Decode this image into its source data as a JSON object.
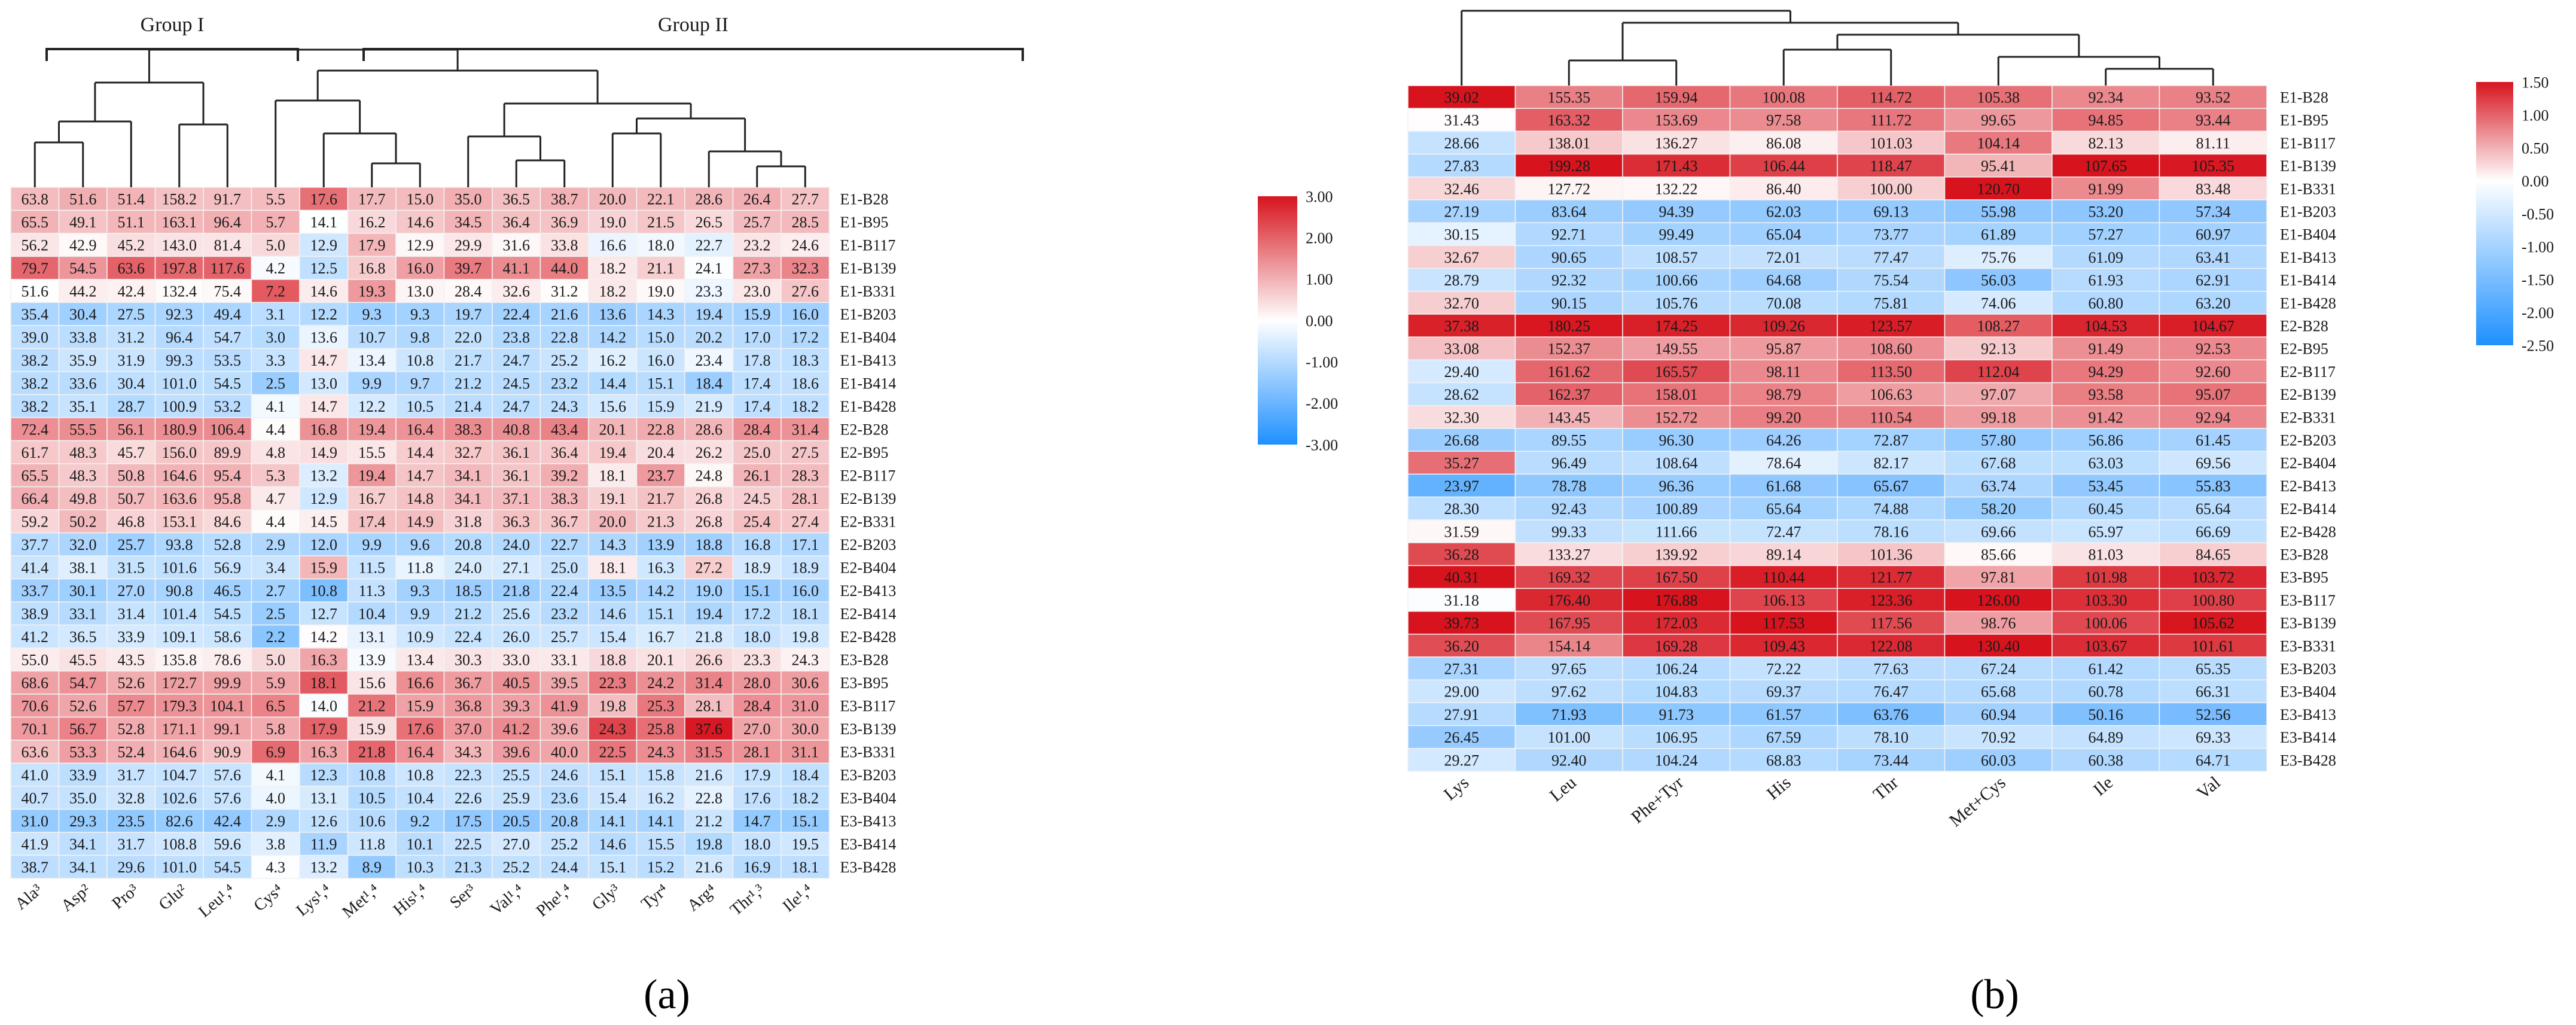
{
  "figure_labels": [
    "(a)",
    "(b)"
  ],
  "chart_data": [
    {
      "type": "heatmap",
      "panel_label": "(a)",
      "group_labels": [
        "Group I",
        "Group II"
      ],
      "columns": [
        "Ala³",
        "Asp²",
        "Pro³",
        "Glu²",
        "Leu¹,⁴",
        "Cys⁴",
        "Lys¹,⁴",
        "Met¹,⁴",
        "His¹,⁴",
        "Ser³",
        "Val¹,⁴",
        "Phe¹,⁴",
        "Gly³",
        "Tyr⁴",
        "Arg⁴",
        "Thr¹,³",
        "Ile¹,⁴"
      ],
      "rows": [
        "E1-B28",
        "E1-B95",
        "E1-B117",
        "E1-B139",
        "E1-B331",
        "E1-B203",
        "E1-B404",
        "E1-B413",
        "E1-B414",
        "E1-B428",
        "E2-B28",
        "E2-B95",
        "E2-B117",
        "E2-B139",
        "E2-B331",
        "E2-B203",
        "E2-B404",
        "E2-B413",
        "E2-B414",
        "E2-B428",
        "E3-B28",
        "E3-B95",
        "E3-B117",
        "E3-B139",
        "E3-B331",
        "E3-B203",
        "E3-B404",
        "E3-B413",
        "E3-B414",
        "E3-B428"
      ],
      "values": [
        [
          "63.8",
          "51.6",
          "51.4",
          "158.2",
          "91.7",
          "5.5",
          "17.6",
          "17.7",
          "15.0",
          "35.0",
          "36.5",
          "38.7",
          "20.0",
          "22.1",
          "28.6",
          "26.4",
          "27.7"
        ],
        [
          "65.5",
          "49.1",
          "51.1",
          "163.1",
          "96.4",
          "5.7",
          "14.1",
          "16.2",
          "14.6",
          "34.5",
          "36.4",
          "36.9",
          "19.0",
          "21.5",
          "26.5",
          "25.7",
          "28.5"
        ],
        [
          "56.2",
          "42.9",
          "45.2",
          "143.0",
          "81.4",
          "5.0",
          "12.9",
          "17.9",
          "12.9",
          "29.9",
          "31.6",
          "33.8",
          "16.6",
          "18.0",
          "22.7",
          "23.2",
          "24.6"
        ],
        [
          "79.7",
          "54.5",
          "63.6",
          "197.8",
          "117.6",
          "4.2",
          "12.5",
          "16.8",
          "16.0",
          "39.7",
          "41.1",
          "44.0",
          "18.2",
          "21.1",
          "24.1",
          "27.3",
          "32.3"
        ],
        [
          "51.6",
          "44.2",
          "42.4",
          "132.4",
          "75.4",
          "7.2",
          "14.6",
          "19.3",
          "13.0",
          "28.4",
          "32.6",
          "31.2",
          "18.2",
          "19.0",
          "23.3",
          "23.0",
          "27.6"
        ],
        [
          "35.4",
          "30.4",
          "27.5",
          "92.3",
          "49.4",
          "3.1",
          "12.2",
          "9.3",
          "9.3",
          "19.7",
          "22.4",
          "21.6",
          "13.6",
          "14.3",
          "19.4",
          "15.9",
          "16.0"
        ],
        [
          "39.0",
          "33.8",
          "31.2",
          "96.4",
          "54.7",
          "3.0",
          "13.6",
          "10.7",
          "9.8",
          "22.0",
          "23.8",
          "22.8",
          "14.2",
          "15.0",
          "20.2",
          "17.0",
          "17.2"
        ],
        [
          "38.2",
          "35.9",
          "31.9",
          "99.3",
          "53.5",
          "3.3",
          "14.7",
          "13.4",
          "10.8",
          "21.7",
          "24.7",
          "25.2",
          "16.2",
          "16.0",
          "23.4",
          "17.8",
          "18.3"
        ],
        [
          "38.2",
          "33.6",
          "30.4",
          "101.0",
          "54.5",
          "2.5",
          "13.0",
          "9.9",
          "9.7",
          "21.2",
          "24.5",
          "23.2",
          "14.4",
          "15.1",
          "18.4",
          "17.4",
          "18.6"
        ],
        [
          "38.2",
          "35.1",
          "28.7",
          "100.9",
          "53.2",
          "4.1",
          "14.7",
          "12.2",
          "10.5",
          "21.4",
          "24.7",
          "24.3",
          "15.6",
          "15.9",
          "21.9",
          "17.4",
          "18.2"
        ],
        [
          "72.4",
          "55.5",
          "56.1",
          "180.9",
          "106.4",
          "4.4",
          "16.8",
          "19.4",
          "16.4",
          "38.3",
          "40.8",
          "43.4",
          "20.1",
          "22.8",
          "28.6",
          "28.4",
          "31.4"
        ],
        [
          "61.7",
          "48.3",
          "45.7",
          "156.0",
          "89.9",
          "4.8",
          "14.9",
          "15.5",
          "14.4",
          "32.7",
          "36.1",
          "36.4",
          "19.4",
          "20.4",
          "26.2",
          "25.0",
          "27.5"
        ],
        [
          "65.5",
          "48.3",
          "50.8",
          "164.6",
          "95.4",
          "5.3",
          "13.2",
          "19.4",
          "14.7",
          "34.1",
          "36.1",
          "39.2",
          "18.1",
          "23.7",
          "24.8",
          "26.1",
          "28.3"
        ],
        [
          "66.4",
          "49.8",
          "50.7",
          "163.6",
          "95.8",
          "4.7",
          "12.9",
          "16.7",
          "14.8",
          "34.1",
          "37.1",
          "38.3",
          "19.1",
          "21.7",
          "26.8",
          "24.5",
          "28.1"
        ],
        [
          "59.2",
          "50.2",
          "46.8",
          "153.1",
          "84.6",
          "4.4",
          "14.5",
          "17.4",
          "14.9",
          "31.8",
          "36.3",
          "36.7",
          "20.0",
          "21.3",
          "26.8",
          "25.4",
          "27.4"
        ],
        [
          "37.7",
          "32.0",
          "25.7",
          "93.8",
          "52.8",
          "2.9",
          "12.0",
          "9.9",
          "9.6",
          "20.8",
          "24.0",
          "22.7",
          "14.3",
          "13.9",
          "18.8",
          "16.8",
          "17.1"
        ],
        [
          "41.4",
          "38.1",
          "31.5",
          "101.6",
          "56.9",
          "3.4",
          "15.9",
          "11.5",
          "11.8",
          "24.0",
          "27.1",
          "25.0",
          "18.1",
          "16.3",
          "27.2",
          "18.9",
          "18.9"
        ],
        [
          "33.7",
          "30.1",
          "27.0",
          "90.8",
          "46.5",
          "2.7",
          "10.8",
          "11.3",
          "9.3",
          "18.5",
          "21.8",
          "22.4",
          "13.5",
          "14.2",
          "19.0",
          "15.1",
          "16.0"
        ],
        [
          "38.9",
          "33.1",
          "31.4",
          "101.4",
          "54.5",
          "2.5",
          "12.7",
          "10.4",
          "9.9",
          "21.2",
          "25.6",
          "23.2",
          "14.6",
          "15.1",
          "19.4",
          "17.2",
          "18.1"
        ],
        [
          "41.2",
          "36.5",
          "33.9",
          "109.1",
          "58.6",
          "2.2",
          "14.2",
          "13.1",
          "10.9",
          "22.4",
          "26.0",
          "25.7",
          "15.4",
          "16.7",
          "21.8",
          "18.0",
          "19.8"
        ],
        [
          "55.0",
          "45.5",
          "43.5",
          "135.8",
          "78.6",
          "5.0",
          "16.3",
          "13.9",
          "13.4",
          "30.3",
          "33.0",
          "33.1",
          "18.8",
          "20.1",
          "26.6",
          "23.3",
          "24.3"
        ],
        [
          "68.6",
          "54.7",
          "52.6",
          "172.7",
          "99.9",
          "5.9",
          "18.1",
          "15.6",
          "16.6",
          "36.7",
          "40.5",
          "39.5",
          "22.3",
          "24.2",
          "31.4",
          "28.0",
          "30.6"
        ],
        [
          "70.6",
          "52.6",
          "57.7",
          "179.3",
          "104.1",
          "6.5",
          "14.0",
          "21.2",
          "15.9",
          "36.8",
          "39.3",
          "41.9",
          "19.8",
          "25.3",
          "28.1",
          "28.4",
          "31.0"
        ],
        [
          "70.1",
          "56.7",
          "52.8",
          "171.1",
          "99.1",
          "5.8",
          "17.9",
          "15.9",
          "17.6",
          "37.0",
          "41.2",
          "39.6",
          "24.3",
          "25.8",
          "37.6",
          "27.0",
          "30.0"
        ],
        [
          "63.6",
          "53.3",
          "52.4",
          "164.6",
          "90.9",
          "6.9",
          "16.3",
          "21.8",
          "16.4",
          "34.3",
          "39.6",
          "40.0",
          "22.5",
          "24.3",
          "31.5",
          "28.1",
          "31.1"
        ],
        [
          "41.0",
          "33.9",
          "31.7",
          "104.7",
          "57.6",
          "4.1",
          "12.3",
          "10.8",
          "10.8",
          "22.3",
          "25.5",
          "24.6",
          "15.1",
          "15.8",
          "21.6",
          "17.9",
          "18.4"
        ],
        [
          "40.7",
          "35.0",
          "32.8",
          "102.6",
          "57.6",
          "4.0",
          "13.1",
          "10.5",
          "10.4",
          "22.6",
          "25.9",
          "23.6",
          "15.4",
          "16.2",
          "22.8",
          "17.6",
          "18.2"
        ],
        [
          "31.0",
          "29.3",
          "23.5",
          "82.6",
          "42.4",
          "2.9",
          "12.6",
          "10.6",
          "9.2",
          "17.5",
          "20.5",
          "20.8",
          "14.1",
          "14.1",
          "21.2",
          "14.7",
          "15.1"
        ],
        [
          "41.9",
          "34.1",
          "31.7",
          "108.8",
          "59.6",
          "3.8",
          "11.9",
          "11.8",
          "10.1",
          "22.5",
          "27.0",
          "25.2",
          "14.6",
          "15.5",
          "19.8",
          "18.0",
          "19.5"
        ],
        [
          "38.7",
          "34.1",
          "29.6",
          "101.0",
          "54.5",
          "4.3",
          "13.2",
          "8.9",
          "10.3",
          "21.3",
          "25.2",
          "24.4",
          "15.1",
          "15.2",
          "21.6",
          "16.9",
          "18.1"
        ]
      ],
      "colorbar": {
        "min": -3,
        "max": 3,
        "ticks": [
          "3.00",
          "2.00",
          "1.00",
          "0.00",
          "-1.00",
          "-2.00",
          "-3.00"
        ],
        "colors": [
          "#1e90ff",
          "#ffffff",
          "#d7141e"
        ]
      }
    },
    {
      "type": "heatmap",
      "panel_label": "(b)",
      "columns": [
        "Lys",
        "Leu",
        "Phe+Tyr",
        "His",
        "Thr",
        "Met+Cys",
        "Ile",
        "Val"
      ],
      "rows": [
        "E1-B28",
        "E1-B95",
        "E1-B117",
        "E1-B139",
        "E1-B331",
        "E1-B203",
        "E1-B404",
        "E1-B413",
        "E1-B414",
        "E1-B428",
        "E2-B28",
        "E2-B95",
        "E2-B117",
        "E2-B139",
        "E2-B331",
        "E2-B203",
        "E2-B404",
        "E2-B413",
        "E2-B414",
        "E2-B428",
        "E3-B28",
        "E3-B95",
        "E3-B117",
        "E3-B139",
        "E3-B331",
        "E3-B203",
        "E3-B404",
        "E3-B413",
        "E3-B414",
        "E3-B428"
      ],
      "values": [
        [
          "39.02",
          "155.35",
          "159.94",
          "100.08",
          "114.72",
          "105.38",
          "92.34",
          "93.52"
        ],
        [
          "31.43",
          "163.32",
          "153.69",
          "97.58",
          "111.72",
          "99.65",
          "94.85",
          "93.44"
        ],
        [
          "28.66",
          "138.01",
          "136.27",
          "86.08",
          "101.03",
          "104.14",
          "82.13",
          "81.11"
        ],
        [
          "27.83",
          "199.28",
          "171.43",
          "106.44",
          "118.47",
          "95.41",
          "107.65",
          "105.35"
        ],
        [
          "32.46",
          "127.72",
          "132.22",
          "86.40",
          "100.00",
          "120.70",
          "91.99",
          "83.48"
        ],
        [
          "27.19",
          "83.64",
          "94.39",
          "62.03",
          "69.13",
          "55.98",
          "53.20",
          "57.34"
        ],
        [
          "30.15",
          "92.71",
          "99.49",
          "65.04",
          "73.77",
          "61.89",
          "57.27",
          "60.97"
        ],
        [
          "32.67",
          "90.65",
          "108.57",
          "72.01",
          "77.47",
          "75.76",
          "61.09",
          "63.41"
        ],
        [
          "28.79",
          "92.32",
          "100.66",
          "64.68",
          "75.54",
          "56.03",
          "61.93",
          "62.91"
        ],
        [
          "32.70",
          "90.15",
          "105.76",
          "70.08",
          "75.81",
          "74.06",
          "60.80",
          "63.20"
        ],
        [
          "37.38",
          "180.25",
          "174.25",
          "109.26",
          "123.57",
          "108.27",
          "104.53",
          "104.67"
        ],
        [
          "33.08",
          "152.37",
          "149.55",
          "95.87",
          "108.60",
          "92.13",
          "91.49",
          "92.53"
        ],
        [
          "29.40",
          "161.62",
          "165.57",
          "98.11",
          "113.50",
          "112.04",
          "94.29",
          "92.60"
        ],
        [
          "28.62",
          "162.37",
          "158.01",
          "98.79",
          "106.63",
          "97.07",
          "93.58",
          "95.07"
        ],
        [
          "32.30",
          "143.45",
          "152.72",
          "99.20",
          "110.54",
          "99.18",
          "91.42",
          "92.94"
        ],
        [
          "26.68",
          "89.55",
          "96.30",
          "64.26",
          "72.87",
          "57.80",
          "56.86",
          "61.45"
        ],
        [
          "35.27",
          "96.49",
          "108.64",
          "78.64",
          "82.17",
          "67.68",
          "63.03",
          "69.56"
        ],
        [
          "23.97",
          "78.78",
          "96.36",
          "61.68",
          "65.67",
          "63.74",
          "53.45",
          "55.83"
        ],
        [
          "28.30",
          "92.43",
          "100.89",
          "65.64",
          "74.88",
          "58.20",
          "60.45",
          "65.64"
        ],
        [
          "31.59",
          "99.33",
          "111.66",
          "72.47",
          "78.16",
          "69.66",
          "65.97",
          "66.69"
        ],
        [
          "36.28",
          "133.27",
          "139.92",
          "89.14",
          "101.36",
          "85.66",
          "81.03",
          "84.65"
        ],
        [
          "40.31",
          "169.32",
          "167.50",
          "110.44",
          "121.77",
          "97.81",
          "101.98",
          "103.72"
        ],
        [
          "31.18",
          "176.40",
          "176.88",
          "106.13",
          "123.36",
          "126.00",
          "103.30",
          "100.80"
        ],
        [
          "39.73",
          "167.95",
          "172.03",
          "117.53",
          "117.56",
          "98.76",
          "100.06",
          "105.62"
        ],
        [
          "36.20",
          "154.14",
          "169.28",
          "109.43",
          "122.08",
          "130.40",
          "103.67",
          "101.61"
        ],
        [
          "27.31",
          "97.65",
          "106.24",
          "72.22",
          "77.63",
          "67.24",
          "61.42",
          "65.35"
        ],
        [
          "29.00",
          "97.62",
          "104.83",
          "69.37",
          "76.47",
          "65.68",
          "60.78",
          "66.31"
        ],
        [
          "27.91",
          "71.93",
          "91.73",
          "61.57",
          "63.76",
          "60.94",
          "50.16",
          "52.56"
        ],
        [
          "26.45",
          "101.00",
          "106.95",
          "67.59",
          "78.10",
          "70.92",
          "64.89",
          "69.33"
        ],
        [
          "29.27",
          "92.40",
          "104.24",
          "68.83",
          "73.44",
          "60.03",
          "60.38",
          "64.71"
        ]
      ],
      "colorbar": {
        "min": -2.5,
        "max": 1.5,
        "ticks": [
          "1.50",
          "1.00",
          "0.50",
          "0.00",
          "-0.50",
          "-1.00",
          "-1.50",
          "-2.00",
          "-2.50"
        ],
        "colors": [
          "#1e90ff",
          "#ffffff",
          "#d7141e"
        ]
      }
    }
  ]
}
